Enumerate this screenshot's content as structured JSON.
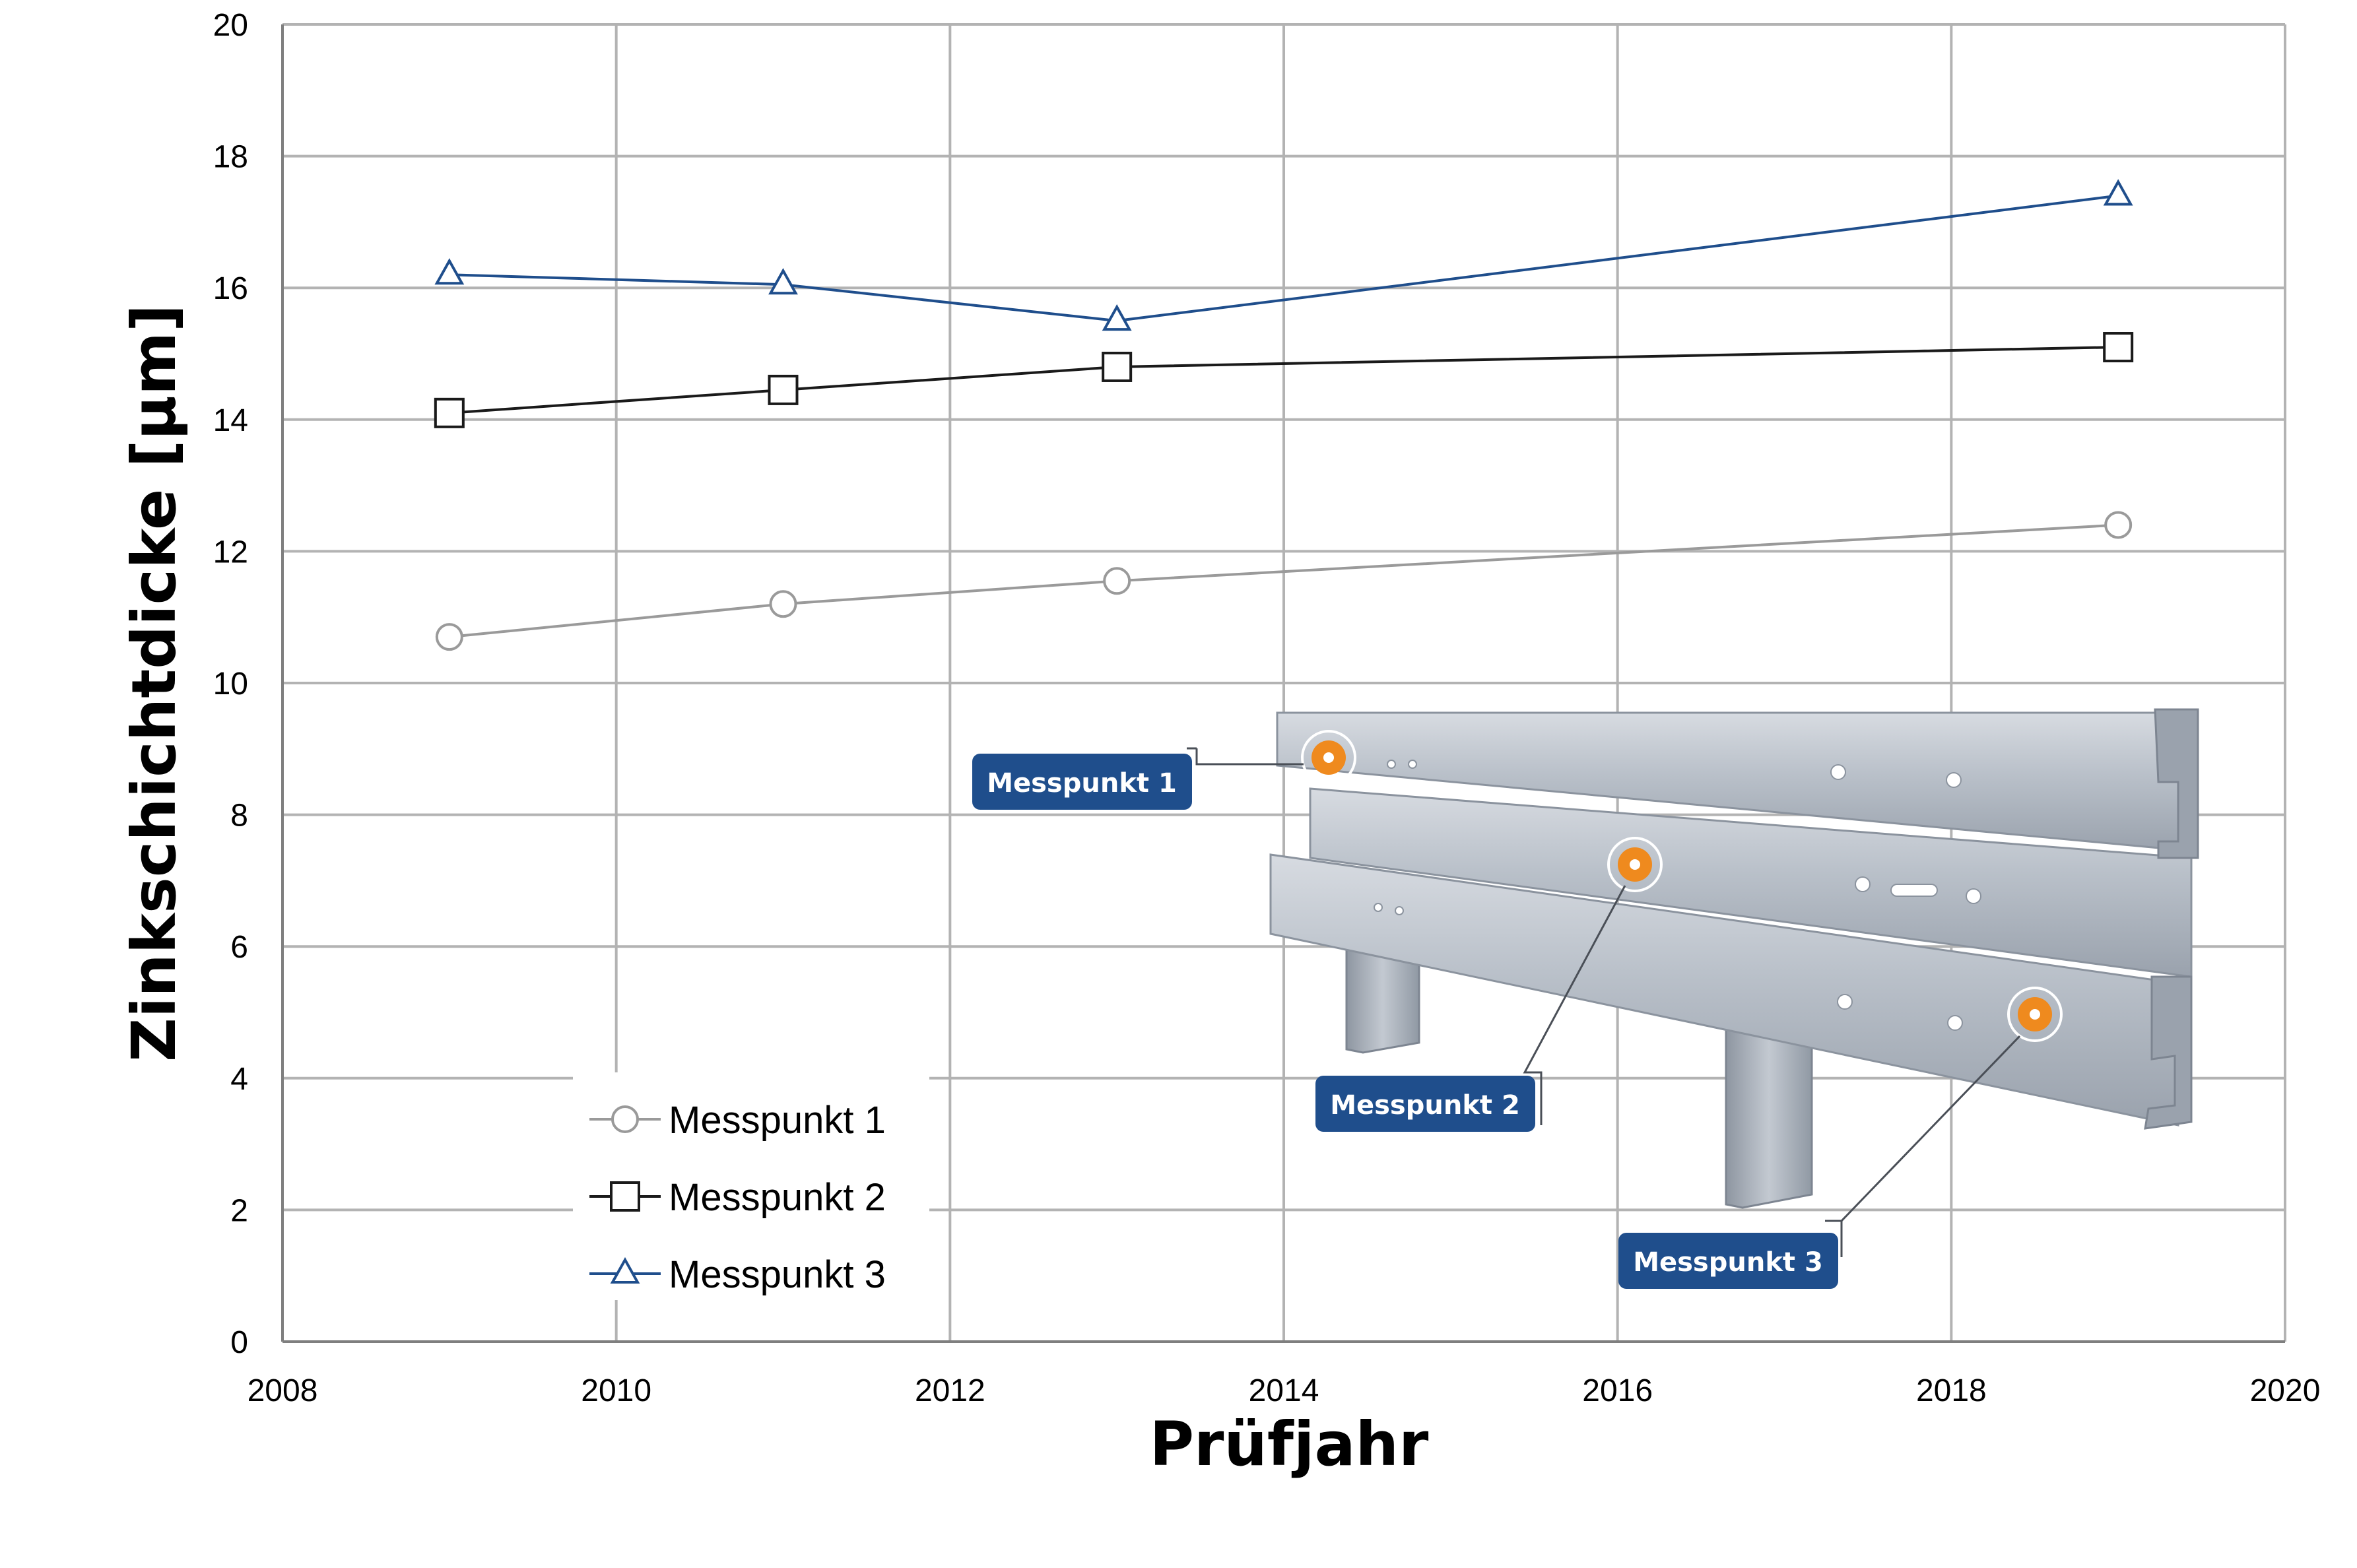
{
  "chart_data": {
    "type": "line",
    "title": "",
    "xlabel": "Prüfjahr",
    "ylabel": "Zinkschichtdicke [µm]",
    "xlim": [
      2008,
      2020
    ],
    "ylim": [
      0,
      20
    ],
    "xticks": [
      2008,
      2010,
      2012,
      2014,
      2016,
      2018,
      2020
    ],
    "yticks": [
      0,
      2,
      4,
      6,
      8,
      10,
      12,
      14,
      16,
      18,
      20
    ],
    "grid": true,
    "legend_position": "bottom-left",
    "x": [
      2009,
      2011,
      2013,
      2019
    ],
    "series": [
      {
        "name": "Messpunkt 1",
        "marker": "circle",
        "color": "#9a9a9a",
        "values": [
          10.7,
          11.2,
          11.55,
          12.4
        ]
      },
      {
        "name": "Messpunkt 2",
        "marker": "square",
        "color": "#1a1a1a",
        "values": [
          14.1,
          14.45,
          14.8,
          15.1
        ]
      },
      {
        "name": "Messpunkt 3",
        "marker": "triangle",
        "color": "#1f4e8c",
        "values": [
          16.2,
          16.05,
          15.5,
          17.4
        ]
      }
    ],
    "annotations": [
      "Messpunkt 1",
      "Messpunkt 2",
      "Messpunkt 3"
    ]
  },
  "colors": {
    "grid": "#b3b3b3",
    "axis": "#7f7f7f",
    "callout": "#1f4e8c",
    "measure_dot": "#ef8a1e",
    "rail_light": "#c9ced6",
    "rail_mid": "#a9b0ba",
    "rail_dark": "#8b939e"
  },
  "icons": {
    "measure_point": "orange-measurement-dot-icon",
    "illustration": "guardrail-illustration"
  }
}
